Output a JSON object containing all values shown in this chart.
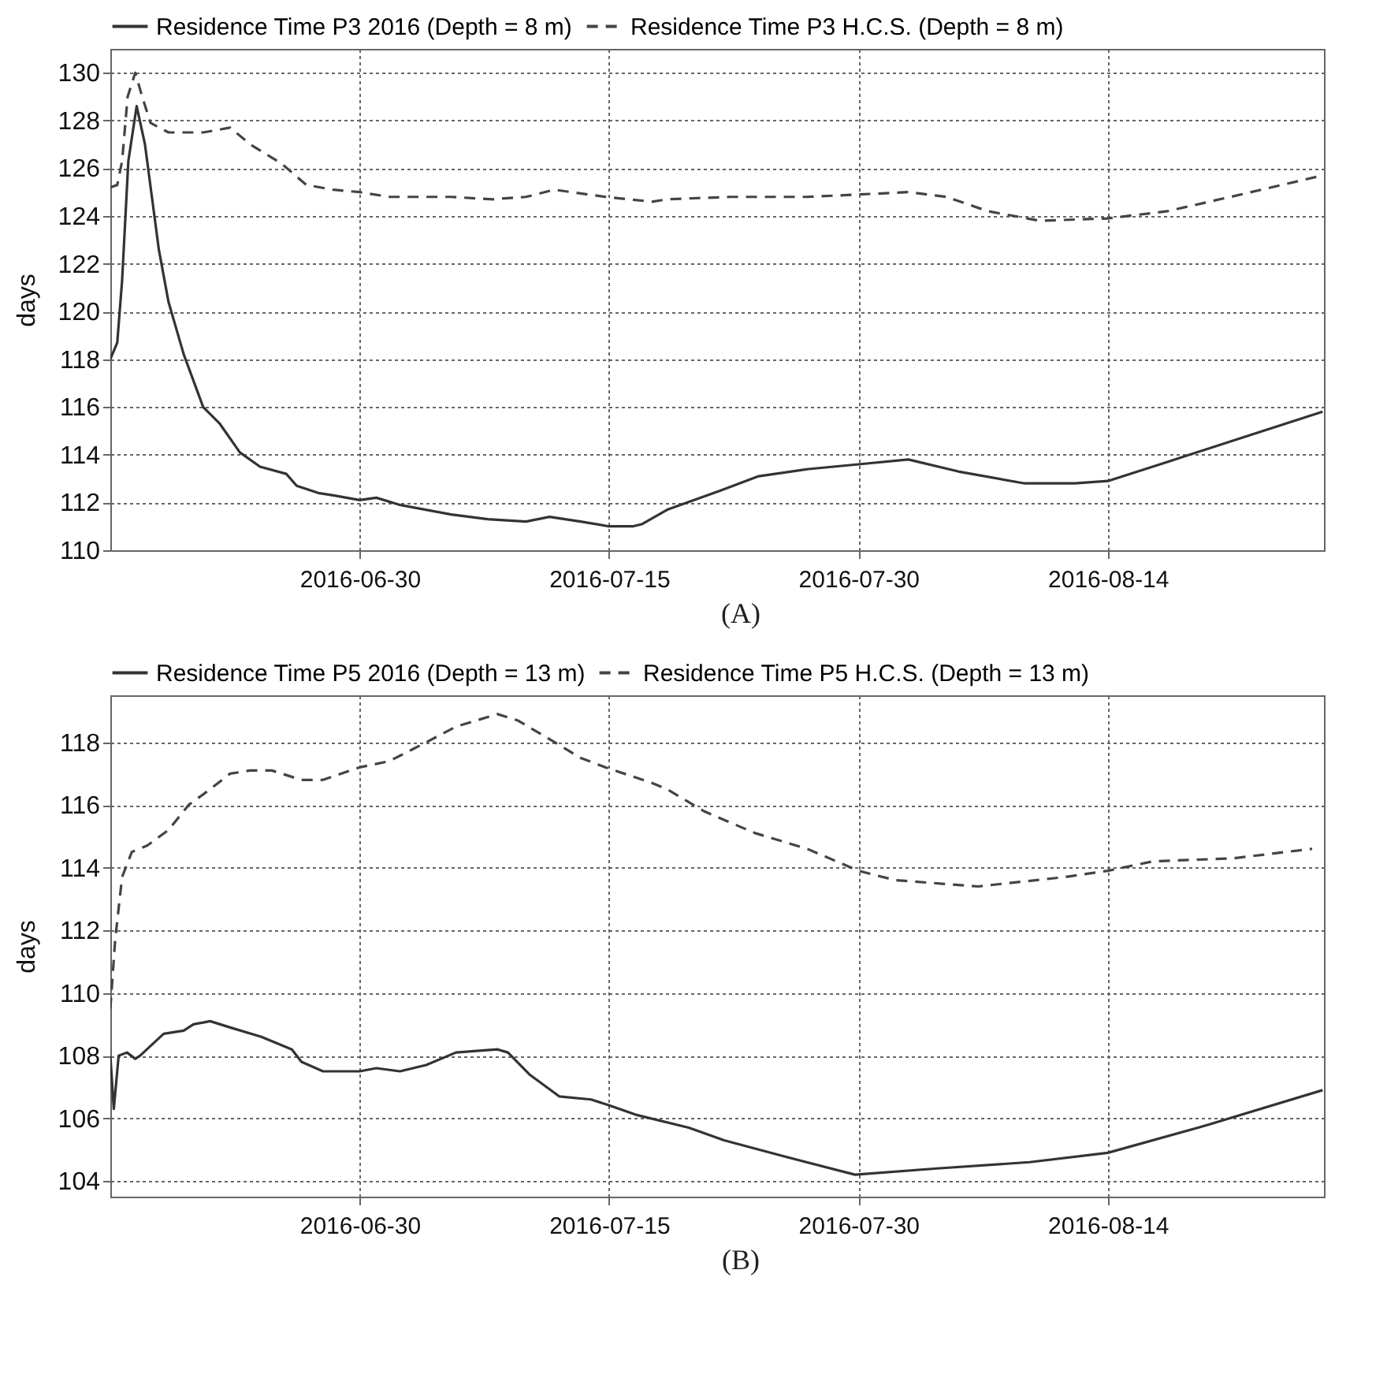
{
  "chart_data": [
    {
      "type": "line",
      "ylabel": "days",
      "xlim": [
        "2016-06-15",
        "2016-08-27"
      ],
      "xticks": [
        "2016-06-30",
        "2016-07-15",
        "2016-07-30",
        "2016-08-14"
      ],
      "ylim": [
        110,
        131
      ],
      "yticks": [
        110,
        112,
        114,
        116,
        118,
        120,
        122,
        124,
        126,
        128,
        130
      ],
      "grid": true,
      "legend": "top",
      "annotations": [
        "(A)"
      ],
      "series": [
        {
          "name": "Residence Time P3 2016 (Depth = 8 m)",
          "color": "#333333",
          "line_style": "solid",
          "x": [
            "2016-06-15",
            "2016-06-15T10:00",
            "2016-06-15T17:00",
            "2016-06-16T02:00",
            "2016-06-16T14:00",
            "2016-06-17T02:00",
            "2016-06-17T22:00",
            "2016-06-18T12:00",
            "2016-06-19T10:00",
            "2016-06-20T14:00",
            "2016-06-21T14:00",
            "2016-06-22T19:00",
            "2016-06-24",
            "2016-06-25T14:00",
            "2016-06-26T05:00",
            "2016-06-27T12:00",
            "2016-06-28T10:00",
            "2016-06-30",
            "2016-07-01",
            "2016-07-02T10:00",
            "2016-07-05T12:00",
            "2016-07-07T17:00",
            "2016-07-10",
            "2016-07-11T10:00",
            "2016-07-13T07:00",
            "2016-07-15",
            "2016-07-16T10:00",
            "2016-07-17",
            "2016-07-18T12:00",
            "2016-07-21T17:00",
            "2016-07-24",
            "2016-07-27",
            "2016-07-30",
            "2016-08-02",
            "2016-08-05",
            "2016-08-09",
            "2016-08-12",
            "2016-08-14",
            "2016-08-17T14:00",
            "2016-08-22",
            "2016-08-26T22:00"
          ],
          "values": [
            118.0,
            118.7,
            121.3,
            126.3,
            128.6,
            127.0,
            122.6,
            120.4,
            118.2,
            116.0,
            115.3,
            114.1,
            113.5,
            113.2,
            112.7,
            112.4,
            112.3,
            112.1,
            112.2,
            111.9,
            111.5,
            111.3,
            111.2,
            111.4,
            111.2,
            111.0,
            111.0,
            111.1,
            111.7,
            112.5,
            113.1,
            113.4,
            113.6,
            113.8,
            113.3,
            112.8,
            112.8,
            112.9,
            113.7,
            114.7,
            115.8
          ]
        },
        {
          "name": "Residence Time P3 H.C.S. (Depth = 8 m)",
          "color": "#444444",
          "line_style": "dashed",
          "x": [
            "2016-06-15",
            "2016-06-15T10:00",
            "2016-06-15T17:00",
            "2016-06-16T01:00",
            "2016-06-16T12:00",
            "2016-06-16T22:00",
            "2016-06-17T10:00",
            "2016-06-18T12:00",
            "2016-06-20T14:00",
            "2016-06-22T05:00",
            "2016-06-23T10:00",
            "2016-06-25T07:00",
            "2016-06-26T19:00",
            "2016-06-28T10:00",
            "2016-06-30",
            "2016-07-01T19:00",
            "2016-07-05T12:00",
            "2016-07-08",
            "2016-07-10",
            "2016-07-11T17:00",
            "2016-07-14T19:00",
            "2016-07-17T14:00",
            "2016-07-18T12:00",
            "2016-07-22T07:00",
            "2016-07-26T22:00",
            "2016-07-30",
            "2016-08-02",
            "2016-08-04T07:00",
            "2016-08-06T19:00",
            "2016-08-09T22:00",
            "2016-08-14",
            "2016-08-17T14:00",
            "2016-08-22",
            "2016-08-26T22:00"
          ],
          "values": [
            125.2,
            125.3,
            126.3,
            129.0,
            130.0,
            129.0,
            127.9,
            127.5,
            127.5,
            127.7,
            127.0,
            126.2,
            125.3,
            125.1,
            125.0,
            124.8,
            124.8,
            124.7,
            124.8,
            125.1,
            124.8,
            124.6,
            124.7,
            124.8,
            124.8,
            124.9,
            125.0,
            124.8,
            124.2,
            123.8,
            123.9,
            124.2,
            124.9,
            125.7
          ]
        }
      ]
    },
    {
      "type": "line",
      "ylabel": "days",
      "xlim": [
        "2016-06-15",
        "2016-08-27"
      ],
      "xticks": [
        "2016-06-30",
        "2016-07-15",
        "2016-07-30",
        "2016-08-14"
      ],
      "ylim": [
        103.5,
        119.5
      ],
      "yticks": [
        104,
        106,
        108,
        110,
        112,
        114,
        116,
        118
      ],
      "grid": true,
      "legend": "top",
      "annotations": [
        "(B)"
      ],
      "series": [
        {
          "name": "Residence Time P5 2016 (Depth = 13 m)",
          "color": "#333333",
          "line_style": "solid",
          "x": [
            "2016-06-15",
            "2016-06-15T05:00",
            "2016-06-15T12:00",
            "2016-06-16",
            "2016-06-16T12:00",
            "2016-06-16T19:00",
            "2016-06-18T05:00",
            "2016-06-19T10:00",
            "2016-06-20",
            "2016-06-21",
            "2016-06-22T05:00",
            "2016-06-24T02:00",
            "2016-06-25T22:00",
            "2016-06-26T12:00",
            "2016-06-27T19:00",
            "2016-06-30",
            "2016-07-01",
            "2016-07-02T10:00",
            "2016-07-04",
            "2016-07-05T19:00",
            "2016-07-08T07:00",
            "2016-07-08T22:00",
            "2016-07-10T05:00",
            "2016-07-12",
            "2016-07-13T22:00",
            "2016-07-15T02:00",
            "2016-07-16T17:00",
            "2016-07-19T19:00",
            "2016-07-21T22:00",
            "2016-07-25T10:00",
            "2016-07-29T19:00",
            "2016-08-03T17:00",
            "2016-08-09T07:00",
            "2016-08-14",
            "2016-08-20T02:00",
            "2016-08-26T22:00"
          ],
          "values": [
            108.0,
            106.3,
            108.0,
            108.1,
            107.9,
            108.0,
            108.7,
            108.8,
            109.0,
            109.1,
            108.9,
            108.6,
            108.2,
            107.8,
            107.5,
            107.5,
            107.6,
            107.5,
            107.7,
            108.1,
            108.2,
            108.1,
            107.4,
            106.7,
            106.6,
            106.4,
            106.1,
            105.7,
            105.3,
            104.8,
            104.2,
            104.4,
            104.6,
            104.9,
            105.8,
            106.9
          ]
        },
        {
          "name": "Residence Time P5 H.C.S. (Depth = 13 m)",
          "color": "#444444",
          "line_style": "dashed",
          "x": [
            "2016-06-15",
            "2016-06-15T07:00",
            "2016-06-15T17:00",
            "2016-06-16T07:00",
            "2016-06-17T05:00",
            "2016-06-18T12:00",
            "2016-06-19T17:00",
            "2016-06-21",
            "2016-06-22T05:00",
            "2016-06-23T10:00",
            "2016-06-24T17:00",
            "2016-06-26T12:00",
            "2016-06-27T19:00",
            "2016-06-30",
            "2016-07-01T19:00",
            "2016-07-04",
            "2016-07-05T19:00",
            "2016-07-08T07:00",
            "2016-07-09T12:00",
            "2016-07-11T10:00",
            "2016-07-13T07:00",
            "2016-07-14T19:00",
            "2016-07-17T14:00",
            "2016-07-18T12:00",
            "2016-07-20T17:00",
            "2016-07-23T19:00",
            "2016-07-26T22:00",
            "2016-07-30",
            "2016-08-01T05:00",
            "2016-08-06T05:00",
            "2016-08-11T10:00",
            "2016-08-14",
            "2016-08-16T17:00",
            "2016-08-21T14:00",
            "2016-08-26T07:00"
          ],
          "values": [
            109.5,
            111.7,
            113.7,
            114.5,
            114.7,
            115.2,
            116.0,
            116.5,
            117.0,
            117.1,
            117.1,
            116.8,
            116.8,
            117.2,
            117.4,
            118.0,
            118.5,
            118.9,
            118.7,
            118.1,
            117.5,
            117.2,
            116.7,
            116.5,
            115.8,
            115.1,
            114.6,
            113.9,
            113.6,
            113.4,
            113.7,
            113.9,
            114.2,
            114.3,
            114.6
          ]
        }
      ]
    }
  ]
}
